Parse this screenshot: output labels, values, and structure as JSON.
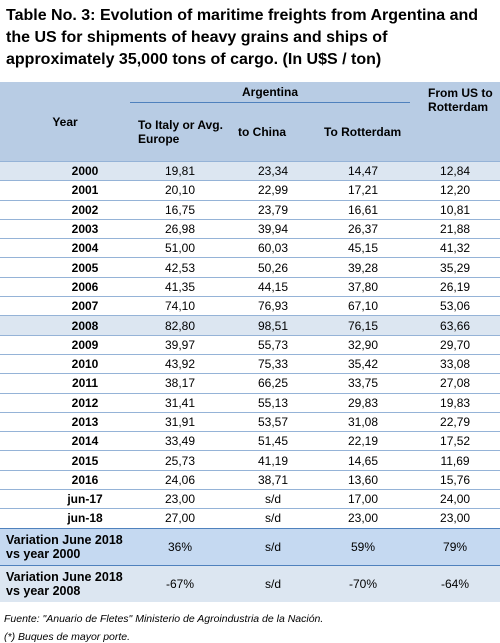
{
  "title": "Table No. 3: Evolution of maritime freights from Argentina and the US for shipments of heavy grains and ships of approximately 35,000 tons of cargo. (In U$S / ton)",
  "table": {
    "header": {
      "year": "Year",
      "group": "Argentina",
      "columns": [
        "To Italy or Avg. Europe",
        "to China",
        "To Rotterdam"
      ],
      "us": "From US to Rotterdam"
    },
    "rows": [
      [
        "2000",
        "19,81",
        "23,34",
        "14,47",
        "12,84"
      ],
      [
        "2001",
        "20,10",
        "22,99",
        "17,21",
        "12,20"
      ],
      [
        "2002",
        "16,75",
        "23,79",
        "16,61",
        "10,81"
      ],
      [
        "2003",
        "26,98",
        "39,94",
        "26,37",
        "21,88"
      ],
      [
        "2004",
        "51,00",
        "60,03",
        "45,15",
        "41,32"
      ],
      [
        "2005",
        "42,53",
        "50,26",
        "39,28",
        "35,29"
      ],
      [
        "2006",
        "41,35",
        "44,15",
        "37,80",
        "26,19"
      ],
      [
        "2007",
        "74,10",
        "76,93",
        "67,10",
        "53,06"
      ],
      [
        "2008",
        "82,80",
        "98,51",
        "76,15",
        "63,66"
      ],
      [
        "2009",
        "39,97",
        "55,73",
        "32,90",
        "29,70"
      ],
      [
        "2010",
        "43,92",
        "75,33",
        "35,42",
        "33,08"
      ],
      [
        "2011",
        "38,17",
        "66,25",
        "33,75",
        "27,08"
      ],
      [
        "2012",
        "31,41",
        "55,13",
        "29,83",
        "19,83"
      ],
      [
        "2013",
        "31,91",
        "53,57",
        "31,08",
        "22,79"
      ],
      [
        "2014",
        "33,49",
        "51,45",
        "22,19",
        "17,52"
      ],
      [
        "2015",
        "25,73",
        "41,19",
        "14,65",
        "11,69"
      ],
      [
        "2016",
        "24,06",
        "38,71",
        "13,60",
        "15,76"
      ],
      [
        "jun-17",
        "23,00",
        "s/d",
        "17,00",
        "24,00"
      ],
      [
        "jun-18",
        "27,00",
        "s/d",
        "23,00",
        "23,00"
      ]
    ],
    "summary_rows": [
      [
        "Variation June 2018 vs year 2000",
        "36%",
        "s/d",
        "59%",
        "79%"
      ],
      [
        "Variation June 2018 vs year 2008",
        "-67%",
        "s/d",
        "-70%",
        "-64%"
      ]
    ]
  },
  "footnotes": [
    "Fuente: \"Anuario de Fletes\" Ministerio de Agroindustria de la Nación.",
    "(*) Buques de mayor porte."
  ]
}
